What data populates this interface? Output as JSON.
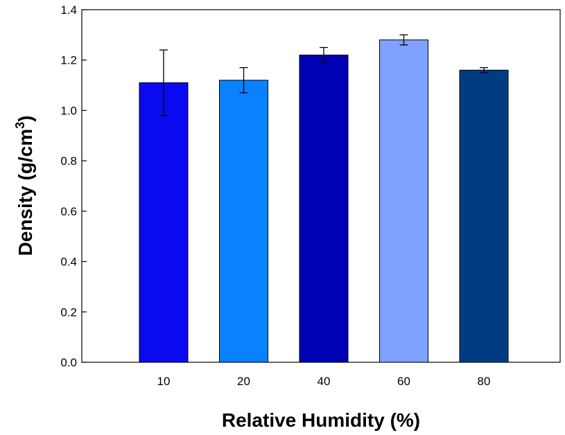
{
  "chart_data": {
    "type": "bar",
    "title": "",
    "xlabel": "Relative Humidity (%)",
    "ylabel_main": "Density (g/cm",
    "ylabel_sup": "3",
    "ylabel_close": ")",
    "categories": [
      "10",
      "20",
      "40",
      "60",
      "80"
    ],
    "values": [
      1.11,
      1.12,
      1.22,
      1.28,
      1.16
    ],
    "errors": [
      0.13,
      0.05,
      0.03,
      0.02,
      0.01
    ],
    "colors": [
      "#0a0af0",
      "#0a82ff",
      "#0000b4",
      "#7fa1ff",
      "#003c82"
    ],
    "ylim": [
      0.0,
      1.4
    ],
    "yticks": [
      "0.0",
      "0.2",
      "0.4",
      "0.6",
      "0.8",
      "1.0",
      "1.2",
      "1.4"
    ],
    "grid": false
  }
}
